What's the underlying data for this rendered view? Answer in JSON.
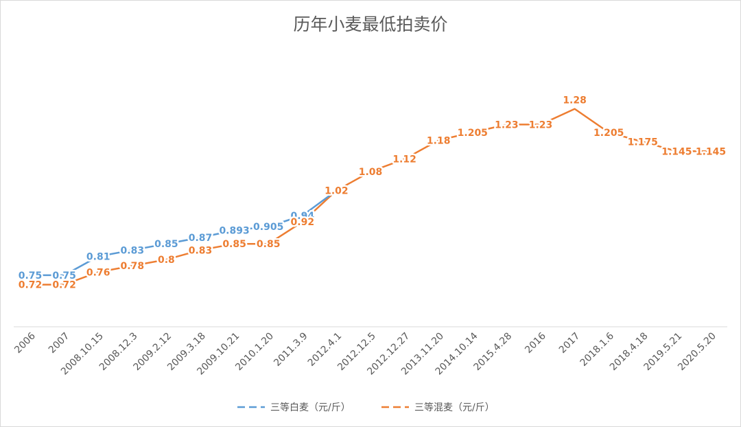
{
  "chart_data": {
    "type": "line",
    "title": "历年小麦最低拍卖价",
    "xlabel": "",
    "ylabel": "",
    "ylim": [
      0.5,
      1.35
    ],
    "grid": false,
    "legend_position": "bottom",
    "categories": [
      "2006",
      "2007",
      "2008.10.15",
      "2008.12.3",
      "2009.2.12",
      "2009.3.18",
      "2009.10.21",
      "2010.1.20",
      "2011.3.9",
      "2012.4.1",
      "2012.12.5",
      "2012.12.27",
      "2013.11.20",
      "2014.10.14",
      "2015.4.28",
      "2016",
      "2017",
      "2018.1.6",
      "2018.4.18",
      "2019.5.21",
      "2020.5.20"
    ],
    "series": [
      {
        "name": "三等白麦（元/斤）",
        "color": "#5b9bd5",
        "dash": true,
        "values": [
          0.75,
          0.75,
          0.81,
          0.83,
          0.85,
          0.87,
          0.893,
          0.905,
          0.94,
          1.02,
          null,
          null,
          null,
          null,
          null,
          null,
          null,
          null,
          null,
          null,
          null
        ],
        "labels": [
          "0.75",
          "0.75",
          "0.81",
          "0.83",
          "0.85",
          "0.87",
          "0.893",
          "0.905",
          "0.94",
          null,
          null,
          null,
          null,
          null,
          null,
          null,
          null,
          null,
          null,
          null,
          null
        ]
      },
      {
        "name": "三等混麦（元/斤）",
        "color": "#ed7d31",
        "dash": true,
        "values": [
          0.72,
          0.72,
          0.76,
          0.78,
          0.8,
          0.83,
          0.85,
          0.85,
          0.92,
          1.02,
          1.08,
          1.12,
          1.18,
          1.205,
          1.23,
          1.23,
          1.28,
          1.205,
          1.175,
          1.145,
          1.145
        ],
        "labels": [
          "0.72",
          "0.72",
          "0.76",
          "0.78",
          "0.8",
          "0.83",
          "0.85",
          "0.85",
          "0.92",
          "1.02",
          "1.08",
          "1.12",
          "1.18",
          "1.205",
          "1.23",
          "1.23",
          "1.28",
          "1.205",
          "1.175",
          "1.145",
          "1.145"
        ]
      }
    ]
  }
}
